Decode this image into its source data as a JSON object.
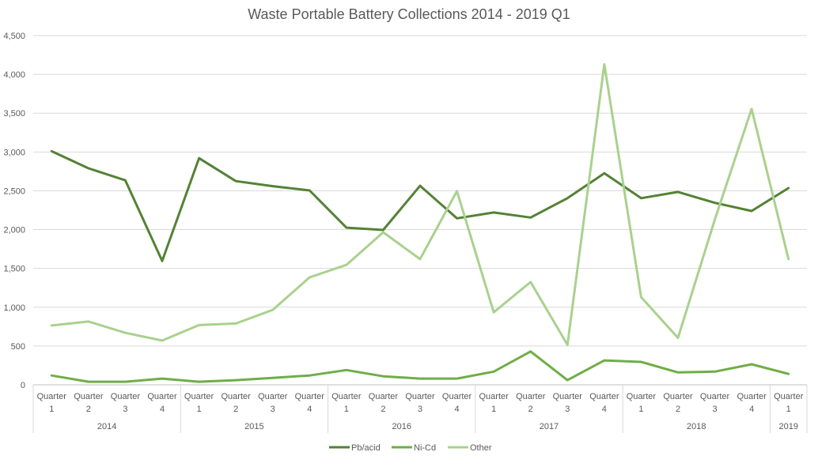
{
  "chart_data": {
    "type": "line",
    "title": "Waste Portable Battery Collections 2014 - 2019 Q1",
    "xlabel": "",
    "ylabel": "",
    "ylim": [
      0,
      4500
    ],
    "yticks": [
      0,
      500,
      1000,
      1500,
      2000,
      2500,
      3000,
      3500,
      4000,
      4500
    ],
    "ytick_labels": [
      "0",
      "500",
      "1,000",
      "1,500",
      "2,000",
      "2,500",
      "3,000",
      "3,500",
      "4,000",
      "4,500"
    ],
    "grid": "horizontal",
    "legend_position": "bottom",
    "quarter_label": "Quarter",
    "categories": [
      {
        "year": "2014",
        "q": "1"
      },
      {
        "year": "2014",
        "q": "2"
      },
      {
        "year": "2014",
        "q": "3"
      },
      {
        "year": "2014",
        "q": "4"
      },
      {
        "year": "2015",
        "q": "1"
      },
      {
        "year": "2015",
        "q": "2"
      },
      {
        "year": "2015",
        "q": "3"
      },
      {
        "year": "2015",
        "q": "4"
      },
      {
        "year": "2016",
        "q": "1"
      },
      {
        "year": "2016",
        "q": "2"
      },
      {
        "year": "2016",
        "q": "3"
      },
      {
        "year": "2016",
        "q": "4"
      },
      {
        "year": "2017",
        "q": "1"
      },
      {
        "year": "2017",
        "q": "2"
      },
      {
        "year": "2017",
        "q": "3"
      },
      {
        "year": "2017",
        "q": "4"
      },
      {
        "year": "2018",
        "q": "1"
      },
      {
        "year": "2018",
        "q": "2"
      },
      {
        "year": "2018",
        "q": "3"
      },
      {
        "year": "2018",
        "q": "4"
      },
      {
        "year": "2019",
        "q": "1"
      }
    ],
    "years": [
      "2014",
      "2015",
      "2016",
      "2017",
      "2018",
      "2019"
    ],
    "series": [
      {
        "name": "Pb/acid",
        "color": "#548235",
        "values": [
          3010,
          2790,
          2635,
          1595,
          2920,
          2625,
          2560,
          2505,
          2025,
          1995,
          2565,
          2145,
          2220,
          2155,
          2405,
          2725,
          2405,
          2485,
          2345,
          2240,
          2535
        ]
      },
      {
        "name": "Ni-Cd",
        "color": "#70AD47",
        "values": [
          120,
          40,
          40,
          80,
          40,
          60,
          90,
          120,
          190,
          110,
          80,
          80,
          170,
          430,
          60,
          315,
          295,
          160,
          170,
          265,
          140
        ]
      },
      {
        "name": "Other",
        "color": "#A9D18E",
        "values": [
          765,
          815,
          670,
          570,
          770,
          790,
          965,
          1385,
          1545,
          1965,
          1620,
          2495,
          935,
          1325,
          515,
          4130,
          1130,
          605,
          2130,
          3555,
          1620
        ]
      }
    ]
  }
}
